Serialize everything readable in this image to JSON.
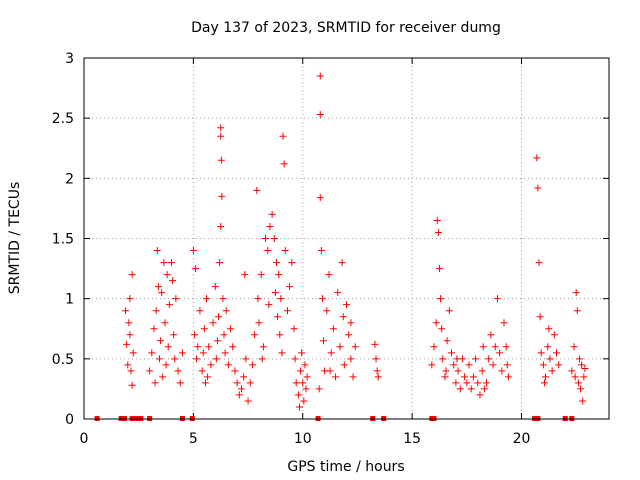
{
  "chart_data": {
    "type": "scatter",
    "title": "Day 137 of 2023, SRMTID for receiver dumg",
    "xlabel": "GPS time / hours",
    "ylabel": "SRMTID / TECUs",
    "xlim": [
      0,
      24
    ],
    "ylim": [
      0,
      3
    ],
    "xticks": [
      0,
      5,
      10,
      15,
      20
    ],
    "xtick_labels": [
      "0",
      "5",
      "10",
      "15",
      "20"
    ],
    "yticks": [
      0,
      0.5,
      1,
      1.5,
      2,
      2.5,
      3
    ],
    "ytick_labels": [
      "0",
      "0.5",
      "1",
      "1.5",
      "2",
      "2.5",
      "3"
    ],
    "grid": true,
    "marker": "plus",
    "color": "#ff0000",
    "series": [
      {
        "name": "SRMTID",
        "points": [
          [
            1.9,
            0.9
          ],
          [
            1.95,
            0.62
          ],
          [
            2.0,
            0.45
          ],
          [
            2.05,
            0.8
          ],
          [
            2.1,
            1.0
          ],
          [
            2.15,
            0.4
          ],
          [
            2.2,
            1.2
          ],
          [
            2.2,
            0.28
          ],
          [
            2.25,
            0.55
          ],
          [
            2.1,
            0.7
          ],
          [
            3.0,
            0.4
          ],
          [
            3.1,
            0.55
          ],
          [
            3.2,
            0.75
          ],
          [
            3.3,
            0.9
          ],
          [
            3.35,
            1.4
          ],
          [
            3.4,
            1.1
          ],
          [
            3.45,
            0.5
          ],
          [
            3.5,
            0.65
          ],
          [
            3.6,
            0.35
          ],
          [
            3.65,
            1.3
          ],
          [
            3.7,
            0.8
          ],
          [
            3.75,
            0.45
          ],
          [
            3.8,
            1.2
          ],
          [
            3.85,
            0.6
          ],
          [
            3.9,
            0.95
          ],
          [
            4.0,
            1.3
          ],
          [
            4.1,
            0.7
          ],
          [
            4.15,
            0.5
          ],
          [
            4.2,
            1.0
          ],
          [
            4.3,
            0.4
          ],
          [
            4.4,
            0.3
          ],
          [
            4.5,
            0.55
          ],
          [
            3.55,
            1.05
          ],
          [
            3.25,
            0.3
          ],
          [
            4.05,
            1.15
          ],
          [
            5.0,
            1.4
          ],
          [
            5.05,
            0.7
          ],
          [
            5.1,
            1.25
          ],
          [
            5.15,
            0.5
          ],
          [
            5.2,
            0.6
          ],
          [
            5.3,
            0.9
          ],
          [
            5.4,
            0.4
          ],
          [
            5.45,
            0.55
          ],
          [
            5.5,
            0.75
          ],
          [
            5.6,
            1.0
          ],
          [
            5.65,
            0.35
          ],
          [
            5.7,
            0.6
          ],
          [
            5.8,
            0.45
          ],
          [
            5.9,
            0.8
          ],
          [
            6.0,
            1.1
          ],
          [
            6.05,
            0.5
          ],
          [
            6.1,
            0.65
          ],
          [
            6.2,
            1.3
          ],
          [
            6.25,
            1.6
          ],
          [
            6.25,
            2.42
          ],
          [
            6.25,
            2.35
          ],
          [
            6.28,
            2.15
          ],
          [
            6.3,
            1.85
          ],
          [
            6.35,
            1.0
          ],
          [
            6.4,
            0.7
          ],
          [
            6.45,
            0.55
          ],
          [
            6.5,
            0.9
          ],
          [
            6.6,
            0.45
          ],
          [
            6.7,
            0.75
          ],
          [
            6.8,
            0.6
          ],
          [
            6.9,
            0.4
          ],
          [
            7.0,
            0.3
          ],
          [
            7.1,
            0.2
          ],
          [
            7.2,
            0.25
          ],
          [
            7.3,
            0.35
          ],
          [
            7.4,
            0.5
          ],
          [
            7.5,
            0.15
          ],
          [
            7.6,
            0.3
          ],
          [
            7.7,
            0.45
          ],
          [
            7.8,
            0.7
          ],
          [
            7.9,
            1.9
          ],
          [
            7.95,
            1.0
          ],
          [
            8.0,
            0.8
          ],
          [
            8.1,
            1.2
          ],
          [
            8.2,
            0.6
          ],
          [
            8.3,
            1.5
          ],
          [
            8.4,
            1.4
          ],
          [
            8.45,
            0.95
          ],
          [
            8.5,
            1.6
          ],
          [
            8.6,
            1.7
          ],
          [
            8.7,
            1.5
          ],
          [
            8.75,
            1.05
          ],
          [
            8.8,
            1.3
          ],
          [
            8.85,
            0.85
          ],
          [
            8.9,
            1.2
          ],
          [
            8.95,
            0.7
          ],
          [
            9.0,
            1.0
          ],
          [
            9.05,
            0.55
          ],
          [
            9.1,
            2.35
          ],
          [
            9.15,
            2.12
          ],
          [
            9.2,
            1.4
          ],
          [
            9.3,
            0.9
          ],
          [
            9.4,
            1.1
          ],
          [
            9.5,
            1.3
          ],
          [
            9.6,
            0.75
          ],
          [
            9.65,
            0.5
          ],
          [
            9.7,
            0.3
          ],
          [
            9.8,
            0.2
          ],
          [
            9.85,
            0.1
          ],
          [
            9.9,
            0.4
          ],
          [
            9.95,
            0.55
          ],
          [
            10.0,
            0.3
          ],
          [
            10.05,
            0.15
          ],
          [
            10.1,
            0.45
          ],
          [
            10.15,
            0.25
          ],
          [
            10.2,
            0.35
          ],
          [
            8.15,
            0.5
          ],
          [
            7.35,
            1.2
          ],
          [
            5.55,
            0.3
          ],
          [
            6.15,
            0.85
          ],
          [
            10.8,
            2.85
          ],
          [
            10.8,
            2.53
          ],
          [
            10.8,
            1.84
          ],
          [
            10.85,
            1.4
          ],
          [
            10.9,
            1.0
          ],
          [
            10.95,
            0.65
          ],
          [
            11.0,
            0.4
          ],
          [
            11.1,
            0.9
          ],
          [
            11.2,
            1.2
          ],
          [
            11.3,
            0.55
          ],
          [
            11.4,
            0.75
          ],
          [
            11.5,
            0.35
          ],
          [
            11.6,
            1.05
          ],
          [
            11.7,
            0.6
          ],
          [
            11.8,
            1.3
          ],
          [
            11.85,
            0.85
          ],
          [
            11.9,
            0.45
          ],
          [
            12.0,
            0.95
          ],
          [
            12.1,
            0.7
          ],
          [
            12.2,
            0.5
          ],
          [
            12.3,
            0.35
          ],
          [
            12.4,
            0.6
          ],
          [
            12.2,
            0.8
          ],
          [
            11.25,
            0.4
          ],
          [
            10.75,
            0.25
          ],
          [
            13.3,
            0.62
          ],
          [
            13.35,
            0.5
          ],
          [
            13.4,
            0.4
          ],
          [
            13.45,
            0.35
          ],
          [
            15.9,
            0.45
          ],
          [
            16.0,
            0.6
          ],
          [
            16.1,
            0.8
          ],
          [
            16.15,
            1.65
          ],
          [
            16.2,
            1.55
          ],
          [
            16.25,
            1.25
          ],
          [
            16.3,
            1.0
          ],
          [
            16.35,
            0.75
          ],
          [
            16.4,
            0.5
          ],
          [
            16.5,
            0.35
          ],
          [
            16.6,
            0.65
          ],
          [
            16.7,
            0.9
          ],
          [
            16.8,
            0.55
          ],
          [
            16.9,
            0.45
          ],
          [
            17.0,
            0.3
          ],
          [
            17.1,
            0.4
          ],
          [
            17.2,
            0.25
          ],
          [
            17.3,
            0.5
          ],
          [
            17.4,
            0.35
          ],
          [
            17.5,
            0.3
          ],
          [
            17.6,
            0.45
          ],
          [
            17.7,
            0.25
          ],
          [
            17.8,
            0.35
          ],
          [
            17.9,
            0.5
          ],
          [
            18.0,
            0.3
          ],
          [
            18.1,
            0.2
          ],
          [
            18.2,
            0.4
          ],
          [
            18.3,
            0.25
          ],
          [
            18.4,
            0.3
          ],
          [
            18.5,
            0.5
          ],
          [
            18.6,
            0.7
          ],
          [
            18.7,
            0.45
          ],
          [
            18.8,
            0.6
          ],
          [
            18.9,
            1.0
          ],
          [
            19.0,
            0.55
          ],
          [
            19.1,
            0.4
          ],
          [
            19.2,
            0.8
          ],
          [
            19.3,
            0.6
          ],
          [
            19.35,
            0.45
          ],
          [
            19.4,
            0.35
          ],
          [
            17.05,
            0.5
          ],
          [
            18.25,
            0.6
          ],
          [
            16.55,
            0.4
          ],
          [
            20.7,
            2.17
          ],
          [
            20.75,
            1.92
          ],
          [
            20.8,
            1.3
          ],
          [
            20.85,
            0.85
          ],
          [
            20.9,
            0.55
          ],
          [
            21.0,
            0.45
          ],
          [
            21.1,
            0.35
          ],
          [
            21.2,
            0.6
          ],
          [
            21.3,
            0.5
          ],
          [
            21.4,
            0.4
          ],
          [
            21.5,
            0.7
          ],
          [
            21.6,
            0.55
          ],
          [
            21.7,
            0.45
          ],
          [
            21.05,
            0.3
          ],
          [
            21.25,
            0.75
          ],
          [
            22.3,
            0.4
          ],
          [
            22.4,
            0.6
          ],
          [
            22.45,
            0.35
          ],
          [
            22.5,
            1.05
          ],
          [
            22.55,
            0.9
          ],
          [
            22.6,
            0.3
          ],
          [
            22.65,
            0.5
          ],
          [
            22.7,
            0.25
          ],
          [
            22.75,
            0.45
          ],
          [
            22.8,
            0.15
          ],
          [
            22.85,
            0.35
          ],
          [
            22.9,
            0.42
          ]
        ]
      }
    ],
    "baseline_markers_x": [
      0.6,
      1.7,
      1.85,
      2.2,
      2.4,
      2.6,
      3.0,
      4.5,
      4.95,
      10.7,
      13.2,
      13.7,
      15.9,
      16.0,
      20.6,
      20.75,
      22.0,
      22.3
    ]
  }
}
